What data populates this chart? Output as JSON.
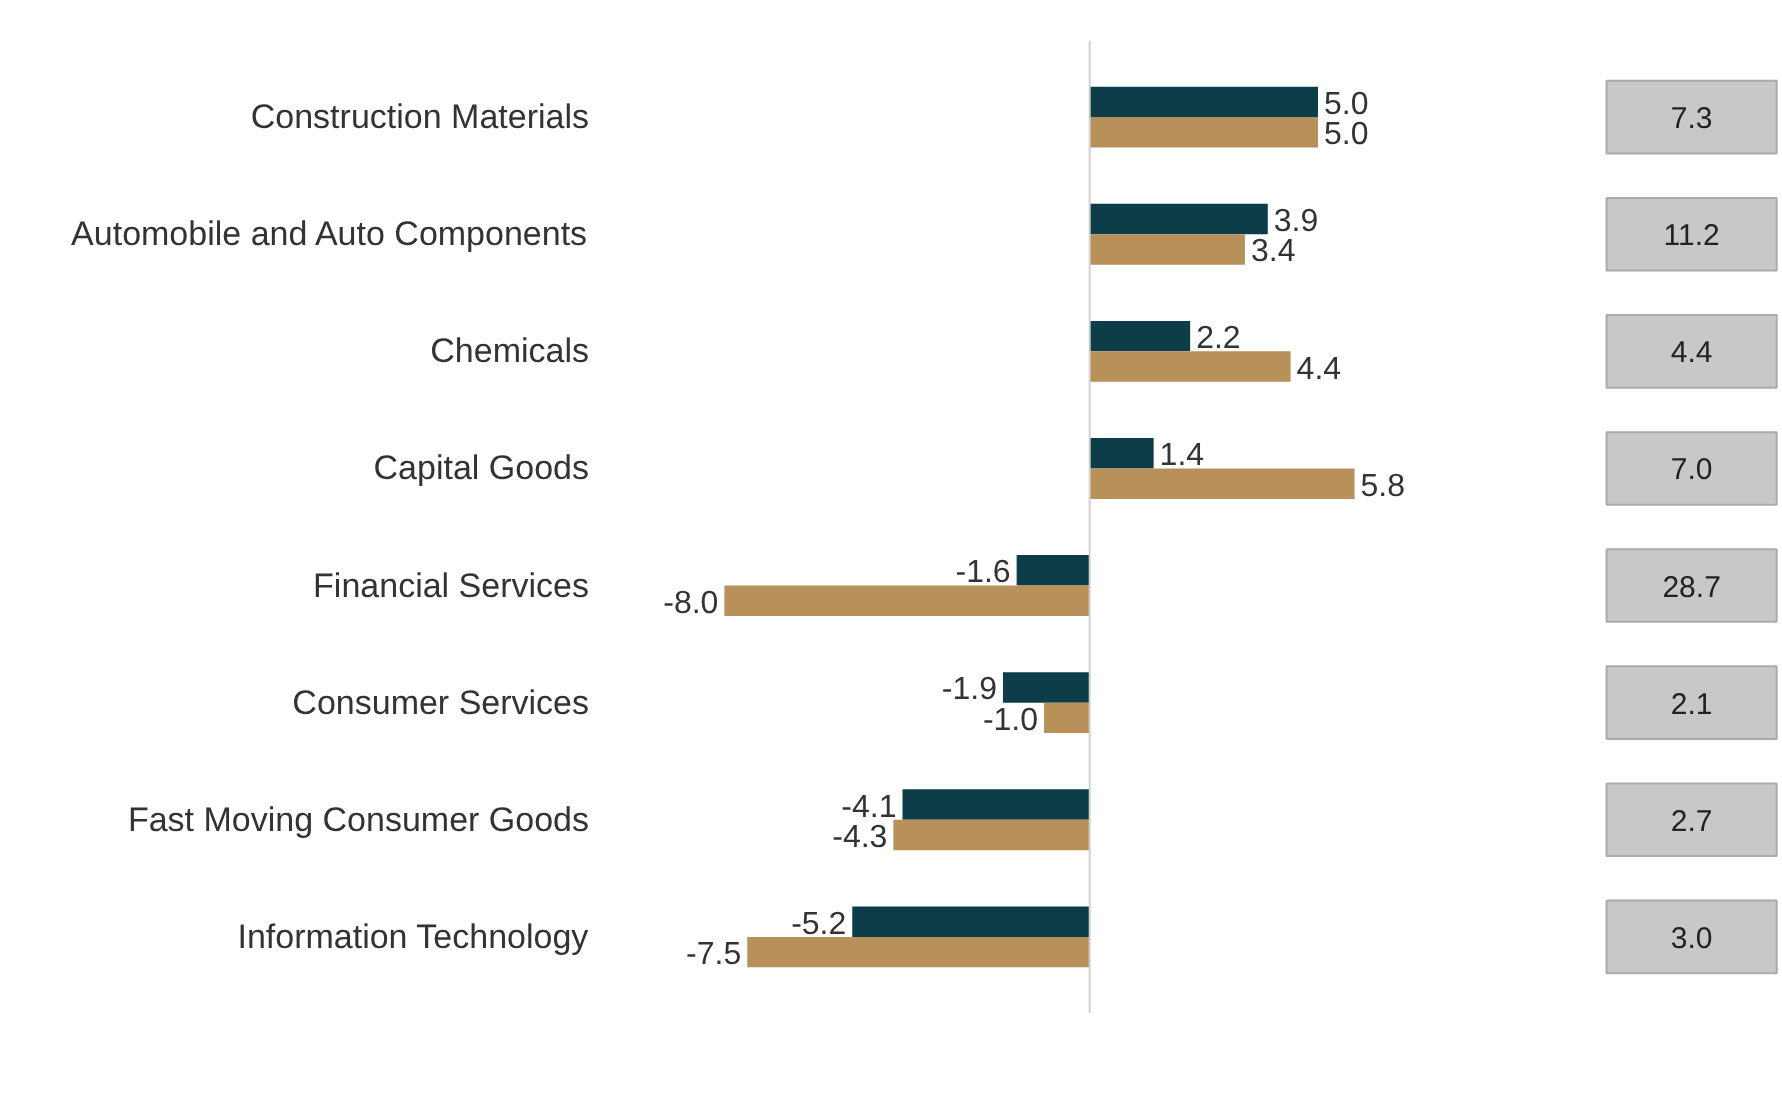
{
  "chart_data": {
    "type": "bar",
    "orientation": "horizontal",
    "categories": [
      "Construction Materials",
      "Automobile and Auto Components",
      "Chemicals",
      "Capital Goods",
      "Financial Services",
      "Consumer Services",
      "Fast Moving Consumer Goods",
      "Information Technology"
    ],
    "series": [
      {
        "color": "#0e3d4a",
        "values": [
          5.0,
          3.9,
          2.2,
          1.4,
          -1.6,
          -1.9,
          -4.1,
          -5.2
        ],
        "value_labels": [
          "5.0",
          "3.9",
          "2.2",
          "1.4",
          "-1.6",
          "-1.9",
          "-4.1",
          "-5.2"
        ]
      },
      {
        "color": "#b8915a",
        "values": [
          5.0,
          3.4,
          4.4,
          5.8,
          -8.0,
          -1.0,
          -4.3,
          -7.5
        ],
        "value_labels": [
          "5.0",
          "3.4",
          "4.4",
          "5.8",
          "-8.0",
          "-1.0",
          "-4.3",
          "-7.5"
        ]
      }
    ],
    "grid": false,
    "annotations": [
      "7.3",
      "11.2",
      "4.4",
      "7.0",
      "28.7",
      "2.1",
      "2.7",
      "3.0"
    ]
  }
}
